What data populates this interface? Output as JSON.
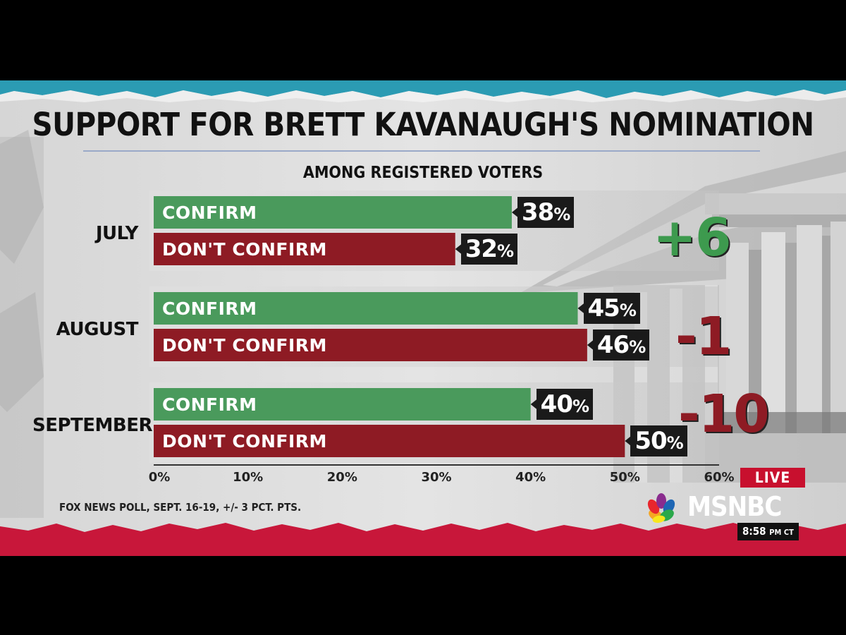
{
  "title": "SUPPORT FOR BRETT KAVANAUGH'S NOMINATION",
  "subtitle": "AMONG REGISTERED VOTERS",
  "source": "FOX NEWS POLL, SEPT. 16-19, +/- 3 PCT. PTS.",
  "network": {
    "name": "MSNBC",
    "live_label": "LIVE",
    "time": "8:58",
    "time_suffix": "PM CT"
  },
  "colors": {
    "confirm": "#4a9a5c",
    "dont_confirm": "#8e1b24",
    "margin_positive": "#3d9a4e",
    "margin_negative": "#8e1b24"
  },
  "chart_data": {
    "type": "bar",
    "orientation": "horizontal",
    "title": "SUPPORT FOR BRETT KAVANAUGH'S NOMINATION",
    "subtitle": "AMONG REGISTERED VOTERS",
    "categories": [
      "JULY",
      "AUGUST",
      "SEPTEMBER"
    ],
    "series": [
      {
        "name": "CONFIRM",
        "values": [
          38,
          45,
          40
        ]
      },
      {
        "name": "DON'T CONFIRM",
        "values": [
          32,
          46,
          50
        ]
      }
    ],
    "margins": [
      "+6",
      "-1",
      "-10"
    ],
    "xlim": [
      0,
      60
    ],
    "xticks": [
      "0%",
      "10%",
      "20%",
      "30%",
      "40%",
      "50%",
      "60%"
    ],
    "value_suffix": "%"
  }
}
